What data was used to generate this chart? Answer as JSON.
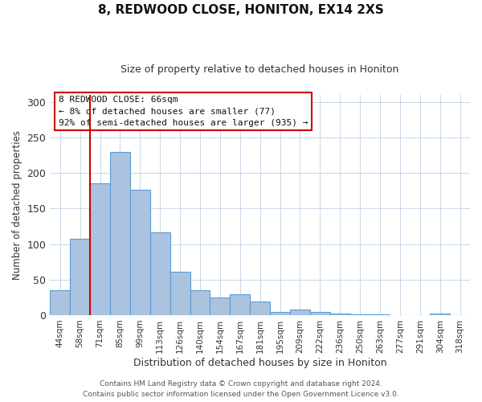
{
  "title": "8, REDWOOD CLOSE, HONITON, EX14 2XS",
  "subtitle": "Size of property relative to detached houses in Honiton",
  "xlabel": "Distribution of detached houses by size in Honiton",
  "ylabel": "Number of detached properties",
  "footer1": "Contains HM Land Registry data © Crown copyright and database right 2024.",
  "footer2": "Contains public sector information licensed under the Open Government Licence v3.0.",
  "bar_labels": [
    "44sqm",
    "58sqm",
    "71sqm",
    "85sqm",
    "99sqm",
    "113sqm",
    "126sqm",
    "140sqm",
    "154sqm",
    "167sqm",
    "181sqm",
    "195sqm",
    "209sqm",
    "222sqm",
    "236sqm",
    "250sqm",
    "263sqm",
    "277sqm",
    "291sqm",
    "304sqm",
    "318sqm"
  ],
  "bar_heights": [
    35,
    107,
    185,
    230,
    176,
    116,
    61,
    35,
    25,
    29,
    19,
    4,
    8,
    4,
    2,
    1,
    1,
    0,
    0,
    2,
    0
  ],
  "bar_color": "#aac4e0",
  "bar_edge_color": "#5b9bd5",
  "vline_x": 1.5,
  "vline_color": "#cc0000",
  "annotation_title": "8 REDWOOD CLOSE: 66sqm",
  "annotation_line1": "← 8% of detached houses are smaller (77)",
  "annotation_line2": "92% of semi-detached houses are larger (935) →",
  "ylim": [
    0,
    310
  ],
  "yticks": [
    0,
    50,
    100,
    150,
    200,
    250,
    300
  ]
}
